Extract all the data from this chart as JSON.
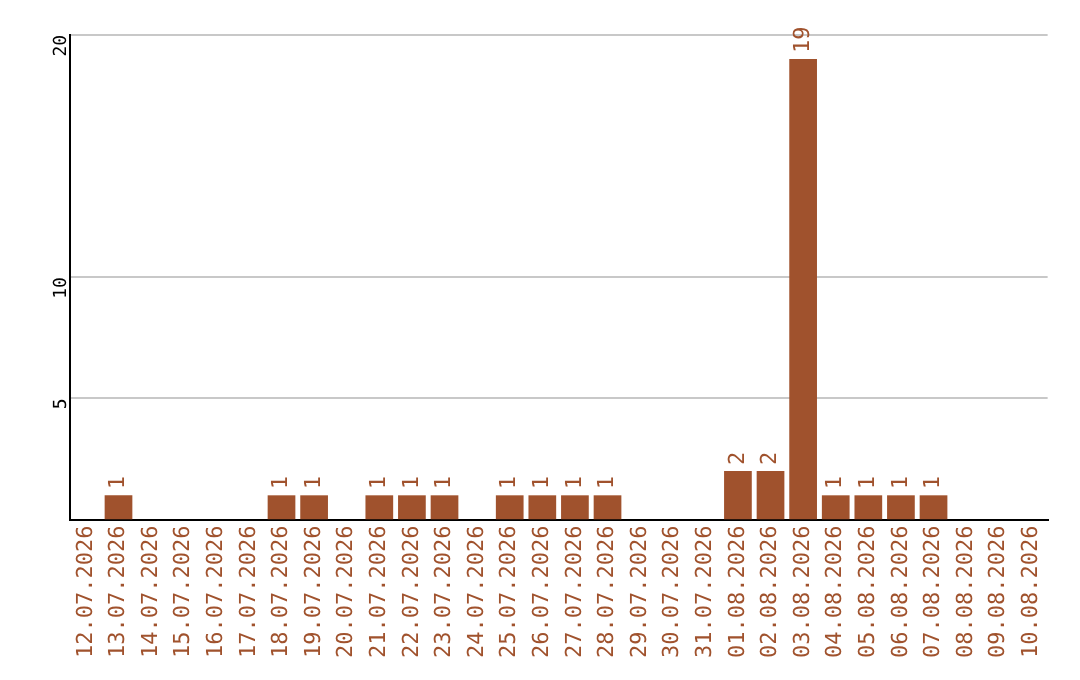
{
  "chart_data": {
    "type": "bar",
    "categories": [
      "12.07.2026",
      "13.07.2026",
      "14.07.2026",
      "15.07.2026",
      "16.07.2026",
      "17.07.2026",
      "18.07.2026",
      "19.07.2026",
      "20.07.2026",
      "21.07.2026",
      "22.07.2026",
      "23.07.2026",
      "24.07.2026",
      "25.07.2026",
      "26.07.2026",
      "27.07.2026",
      "28.07.2026",
      "29.07.2026",
      "30.07.2026",
      "31.07.2026",
      "01.08.2026",
      "02.08.2026",
      "03.08.2026",
      "04.08.2026",
      "05.08.2026",
      "06.08.2026",
      "07.08.2026",
      "08.08.2026",
      "09.08.2026",
      "10.08.2026"
    ],
    "values": [
      0,
      1,
      0,
      0,
      0,
      0,
      1,
      1,
      0,
      1,
      1,
      1,
      0,
      1,
      1,
      1,
      1,
      0,
      0,
      0,
      2,
      2,
      19,
      1,
      1,
      1,
      1,
      0,
      0,
      0
    ],
    "value_labels": [
      null,
      "1",
      null,
      null,
      null,
      null,
      "1",
      "1",
      null,
      "1",
      "1",
      "1",
      null,
      "1",
      "1",
      "1",
      "1",
      null,
      null,
      null,
      "2",
      "2",
      "19",
      "1",
      "1",
      "1",
      "1",
      null,
      null,
      null
    ],
    "color": "#a0522d",
    "ylim": [
      0,
      20
    ],
    "yticks": [
      5,
      10,
      20
    ],
    "grid": "y"
  }
}
